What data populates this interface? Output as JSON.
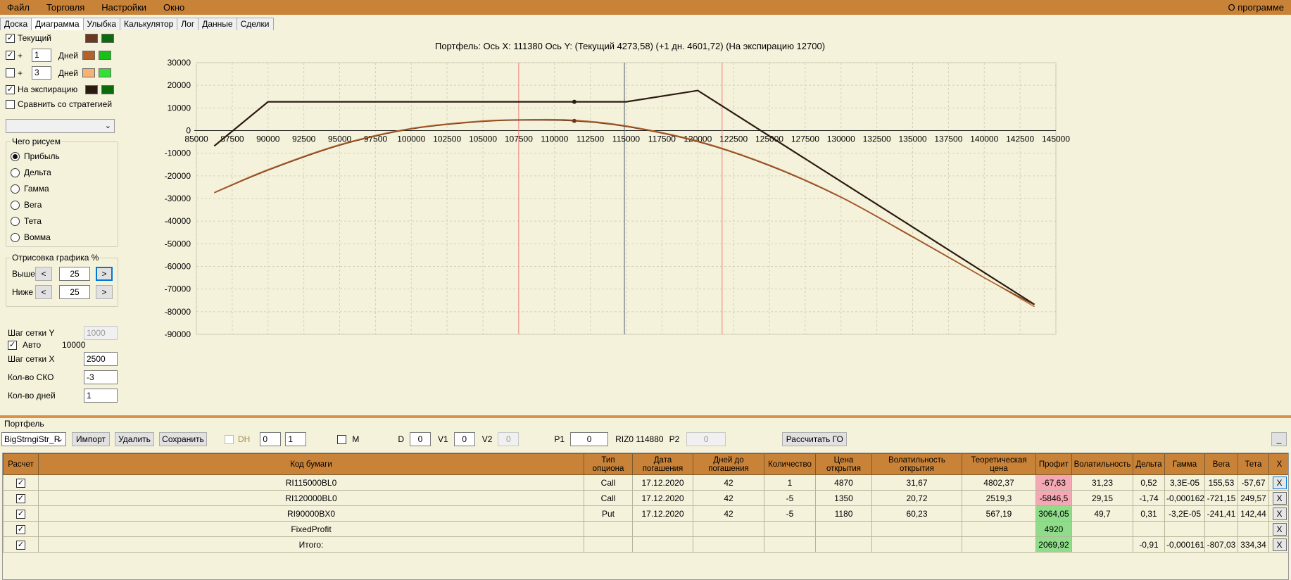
{
  "menu": {
    "items": [
      "Файл",
      "Торговля",
      "Настройки",
      "Окно"
    ],
    "right": "О программе"
  },
  "tabs": [
    "Доска",
    "Диаграмма",
    "Улыбка",
    "Калькулятор",
    "Лог",
    "Данные",
    "Сделки"
  ],
  "left": {
    "current": {
      "label": "Текущий",
      "checked": true,
      "colors": [
        "#6b3a1e",
        "#0d6b0d"
      ]
    },
    "plus1": {
      "plus": "+",
      "value": "1",
      "unit": "Дней",
      "checked": true,
      "colors": [
        "#b5612a",
        "#19c019"
      ]
    },
    "plus3": {
      "plus": "+",
      "value": "3",
      "unit": "Дней",
      "checked": false,
      "colors": [
        "#f7b374",
        "#33e033"
      ]
    },
    "expiration": {
      "label": "На экспирацию",
      "checked": true,
      "colors": [
        "#2b1a10",
        "#0b6a0b"
      ]
    },
    "compare": {
      "label": "Сравнить со стратегией",
      "checked": false
    },
    "what_group": {
      "title": "Чего рисуем",
      "options": [
        "Прибыль",
        "Дельта",
        "Гамма",
        "Вега",
        "Тета",
        "Вомма"
      ],
      "selected": 0
    },
    "draw_group": {
      "title": "Отрисовка графика %",
      "above_label": "Выше",
      "above_value": "25",
      "below_label": "Ниже",
      "below_value": "25",
      "prev": "<",
      "next": ">"
    },
    "grid_y_label": "Шаг сетки Y",
    "grid_y_value": "1000",
    "auto_label": "Авто",
    "auto_value": "10000",
    "grid_x_label": "Шаг сетки X",
    "grid_x_value": "2500",
    "sko_label": "Кол-во СКО",
    "sko_value": "-3",
    "days_label": "Кол-во дней",
    "days_value": "1"
  },
  "chart_data": {
    "type": "line",
    "title": "Портфель: Ось X: 111380 Ось Y:  (Текущий 4273,58)  (+1 дн. 4601,72)  (На экспирацию 12700)",
    "xlim": [
      85000,
      145000
    ],
    "ylim": [
      -90000,
      30000
    ],
    "xticks": [
      85000,
      87500,
      90000,
      92500,
      95000,
      97500,
      100000,
      102500,
      105000,
      107500,
      110000,
      112500,
      115000,
      117500,
      120000,
      122500,
      125000,
      127500,
      130000,
      132500,
      135000,
      137500,
      140000,
      142500,
      145000
    ],
    "yticks": [
      30000,
      20000,
      10000,
      0,
      -10000,
      -20000,
      -30000,
      -40000,
      -50000,
      -60000,
      -70000,
      -80000,
      -90000
    ],
    "grid": true,
    "vlines_red": [
      107500,
      121700
    ],
    "vline_current": 114880,
    "cursor_x": 111380,
    "series": [
      {
        "color": "#2b1a10",
        "x": [
          86250,
          90000,
          115000,
          120000,
          143500
        ],
        "y": [
          -6800,
          12700,
          12700,
          17700,
          -76800
        ]
      },
      {
        "color": "#6b3a1e",
        "x": [
          86250,
          90000,
          95000,
          100000,
          105000,
          108500,
          111380,
          115000,
          120000,
          125000,
          130000,
          135000,
          140000,
          143500
        ],
        "y": [
          -27500,
          -17500,
          -6500,
          700,
          4000,
          4600,
          4273,
          1800,
          -4900,
          -15500,
          -29500,
          -47000,
          -65000,
          -77000
        ]
      },
      {
        "color": "#b5612a",
        "x": [
          86250,
          90000,
          95000,
          100000,
          105000,
          108500,
          111380,
          115000,
          120000,
          125000,
          130000,
          135000,
          140000,
          143500
        ],
        "y": [
          -27300,
          -17200,
          -6200,
          1000,
          4300,
          4900,
          4601,
          2100,
          -4600,
          -15200,
          -29300,
          -46800,
          -64900,
          -77800
        ]
      }
    ]
  },
  "portfolio": {
    "label": "Портфель",
    "toolbar": {
      "combo": "BigStrngiStr_R",
      "import": "Импорт",
      "delete": "Удалить",
      "save": "Сохранить",
      "dh": "DH",
      "spin1": "0",
      "spin2": "1",
      "m": "M",
      "d_label": "D",
      "d_value": "0",
      "v1_label": "V1",
      "v1_value": "0",
      "v2_label": "V2",
      "v2_value": "0",
      "p1_label": "P1",
      "p1_value": "0",
      "riz": "RIZ0 114880",
      "p2_label": "P2",
      "p2_value": "0",
      "calc": "Рассчитать ГО",
      "min": "_"
    },
    "columns": [
      "Расчет",
      "Код бумаги",
      "Тип опциона",
      "Дата погашения",
      "Дней до погашения",
      "Количество",
      "Цена открытия",
      "Волатильность открытия",
      "Теоретическая цена",
      "Профит",
      "Волатильность",
      "Дельта",
      "Гамма",
      "Вега",
      "Тета",
      "X"
    ],
    "rows": [
      {
        "code": "RI115000BL0",
        "type": "Call",
        "date": "17.12.2020",
        "days": "42",
        "qty": "1",
        "price": "4870",
        "vol_open": "31,67",
        "theor": "4802,37",
        "profit": "-67,63",
        "profit_color": "red",
        "vol": "31,23",
        "delta": "0,52",
        "gamma": "3,3E-05",
        "vega": "155,53",
        "theta": "-57,67"
      },
      {
        "code": "RI120000BL0",
        "type": "Call",
        "date": "17.12.2020",
        "days": "42",
        "qty": "-5",
        "price": "1350",
        "vol_open": "20,72",
        "theor": "2519,3",
        "profit": "-5846,5",
        "profit_color": "red",
        "vol": "29,15",
        "delta": "-1,74",
        "gamma": "-0,000162",
        "vega": "-721,15",
        "theta": "249,57"
      },
      {
        "code": "RI90000BX0",
        "type": "Put",
        "date": "17.12.2020",
        "days": "42",
        "qty": "-5",
        "price": "1180",
        "vol_open": "60,23",
        "theor": "567,19",
        "profit": "3064,05",
        "profit_color": "green",
        "vol": "49,7",
        "delta": "0,31",
        "gamma": "-3,2E-05",
        "vega": "-241,41",
        "theta": "142,44"
      },
      {
        "code": "FixedProfit",
        "type": "",
        "date": "",
        "days": "",
        "qty": "",
        "price": "",
        "vol_open": "",
        "theor": "",
        "profit": "4920",
        "profit_color": "green",
        "vol": "",
        "delta": "",
        "gamma": "",
        "vega": "",
        "theta": ""
      },
      {
        "code": "Итого:",
        "type": "",
        "date": "",
        "days": "",
        "qty": "",
        "price": "",
        "vol_open": "",
        "theor": "",
        "profit": "2069,92",
        "profit_color": "green",
        "vol": "",
        "delta": "-0,91",
        "gamma": "-0,000161",
        "vega": "-807,03",
        "theta": "334,34"
      }
    ],
    "x_label": "X"
  }
}
